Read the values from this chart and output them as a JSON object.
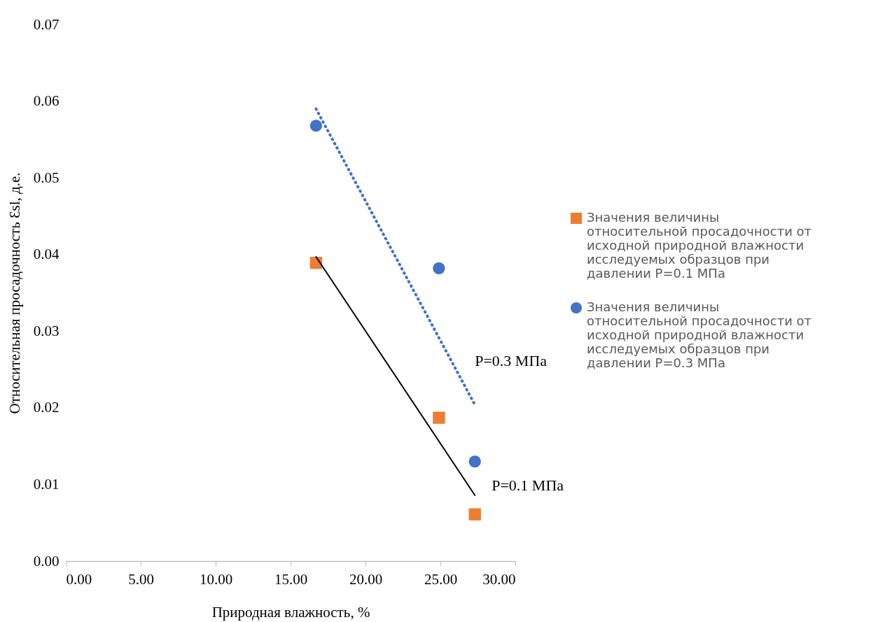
{
  "chart_data": {
    "type": "scatter",
    "xlabel": "Природная влажность, %",
    "ylabel": "Относительная просадочность Ɛsl, д.е.",
    "xlim": [
      0,
      30
    ],
    "xticks": [
      {
        "value": 0,
        "label": "0.00"
      },
      {
        "value": 5,
        "label": "5.00"
      },
      {
        "value": 10,
        "label": "10.00"
      },
      {
        "value": 15,
        "label": "15.00"
      },
      {
        "value": 20,
        "label": "20.00"
      },
      {
        "value": 25,
        "label": "25.00"
      },
      {
        "value": 30,
        "label": "30.00"
      }
    ],
    "ylim": [
      0,
      0.07
    ],
    "yticks": [
      {
        "value": 0,
        "label": "0.00"
      },
      {
        "value": 0.01,
        "label": "0.01"
      },
      {
        "value": 0.02,
        "label": "0.02"
      },
      {
        "value": 0.03,
        "label": "0.03"
      },
      {
        "value": 0.04,
        "label": "0.04"
      },
      {
        "value": 0.05,
        "label": "0.05"
      },
      {
        "value": 0.06,
        "label": "0.06"
      },
      {
        "value": 0.07,
        "label": "0.07"
      }
    ],
    "grid": false,
    "legend": "right",
    "series": [
      {
        "name": "Значения величины относительной просадочности от исходной природной влажности исследуемых образцов при давлении P=0.1 МПа",
        "color": "#ed7d31",
        "marker": "square",
        "x": [
          16.7,
          24.9,
          27.3
        ],
        "values": [
          0.0389,
          0.0187,
          0.0061
        ]
      },
      {
        "name": "Значения величины относительной просадочности от исходной природной влажности исследуемых образцов при давлении P=0.3 МПа",
        "color": "#4472c4",
        "marker": "circle",
        "x": [
          16.7,
          24.9,
          27.3
        ],
        "values": [
          0.0568,
          0.0382,
          0.013
        ]
      },
      {
        "type": "line",
        "color": "#4472c4",
        "line_style": "dotted",
        "x": [
          16.7,
          27.3
        ],
        "values": [
          0.059,
          0.0204
        ]
      },
      {
        "type": "line",
        "color": "#000000",
        "line_style": "solid",
        "x": [
          16.7,
          27.3
        ],
        "values": [
          0.0397,
          0.0086
        ]
      }
    ],
    "annotations": [
      {
        "text": "P=0.3 МПа",
        "x": 27.3,
        "y": 0.0204
      },
      {
        "text": "P=0.1 МПа",
        "x": 27.3,
        "y": 0.0086
      }
    ]
  }
}
